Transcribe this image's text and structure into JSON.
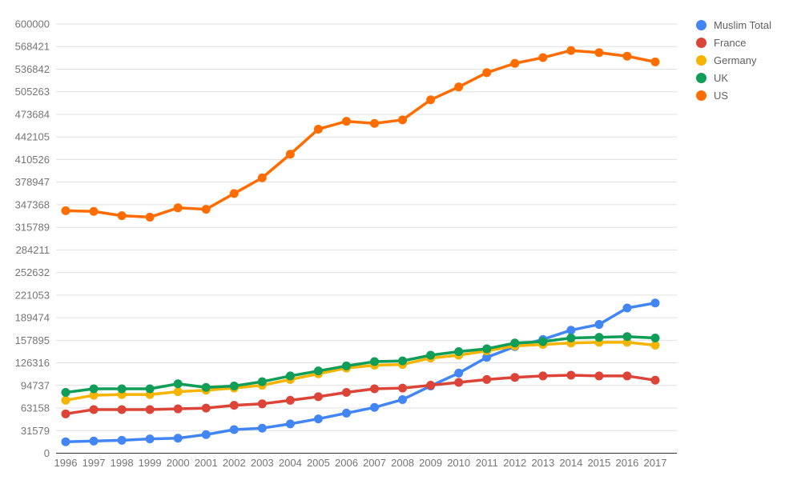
{
  "chart_data": {
    "type": "line",
    "title": "",
    "xlabel": "",
    "ylabel": "",
    "grid": true,
    "legend_position": "right",
    "ylim": [
      0,
      600000
    ],
    "y_ticks": [
      0,
      31579,
      63158,
      94737,
      126316,
      157895,
      189474,
      221053,
      252632,
      284211,
      315789,
      347368,
      378947,
      410526,
      442105,
      473684,
      505263,
      536842,
      568421,
      600000
    ],
    "x": [
      1996,
      1997,
      1998,
      1999,
      2000,
      2001,
      2002,
      2003,
      2004,
      2005,
      2006,
      2007,
      2008,
      2009,
      2010,
      2011,
      2012,
      2013,
      2014,
      2015,
      2016,
      2017
    ],
    "series": [
      {
        "name": "Muslim Total",
        "color": "#4285F4",
        "values": [
          16000,
          17000,
          18000,
          20000,
          21000,
          26000,
          33000,
          35000,
          41000,
          48000,
          56000,
          64000,
          75000,
          94000,
          112000,
          134000,
          149000,
          159000,
          172000,
          180000,
          203000,
          210000
        ]
      },
      {
        "name": "France",
        "color": "#DB4437",
        "values": [
          55000,
          61000,
          61000,
          61000,
          62000,
          63000,
          67000,
          69000,
          74000,
          79000,
          85000,
          90000,
          91000,
          95000,
          99000,
          103000,
          106000,
          108000,
          109000,
          108000,
          108000,
          102000
        ]
      },
      {
        "name": "Germany",
        "color": "#F4B400",
        "values": [
          74000,
          81000,
          82000,
          82000,
          86000,
          88000,
          91000,
          95000,
          103000,
          111000,
          119000,
          123000,
          124000,
          133000,
          137000,
          143000,
          150000,
          152000,
          154000,
          155000,
          155000,
          151000
        ]
      },
      {
        "name": "UK",
        "color": "#0F9D58",
        "values": [
          85000,
          90000,
          90000,
          90000,
          97000,
          92000,
          94000,
          100000,
          108000,
          115000,
          122000,
          128000,
          129000,
          137000,
          142000,
          146000,
          154000,
          156000,
          161000,
          162000,
          163000,
          161000
        ]
      },
      {
        "name": "US",
        "color": "#FF6D00",
        "values": [
          339000,
          338000,
          332000,
          330000,
          343000,
          341000,
          363000,
          385000,
          418000,
          453000,
          464000,
          461000,
          466000,
          494000,
          512000,
          532000,
          545000,
          553000,
          563000,
          560000,
          555000,
          547000
        ]
      }
    ],
    "style": {
      "gridline_color": "#e0e0e0",
      "baseline_color": "#333333",
      "tick_label_color": "#757575",
      "background": "#ffffff"
    }
  }
}
